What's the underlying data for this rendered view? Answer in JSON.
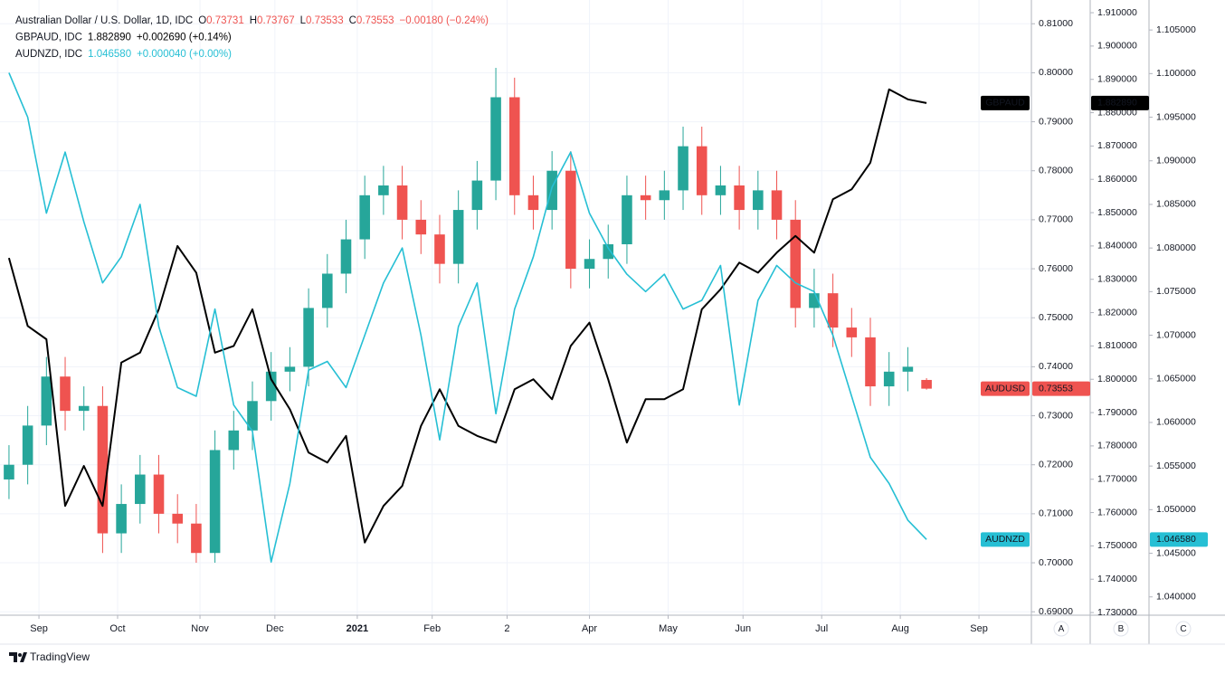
{
  "chart_data": {
    "type": "candlestick",
    "x": [
      0,
      5,
      10,
      15,
      20,
      25,
      30,
      35,
      40,
      45,
      50,
      55,
      60,
      65,
      70,
      75,
      80,
      85,
      90,
      95,
      100,
      105,
      110,
      115,
      120,
      125,
      130,
      135,
      140,
      145,
      150,
      155,
      160,
      165,
      170,
      175,
      180,
      185,
      190,
      195,
      200,
      205,
      210,
      215,
      220,
      225,
      230,
      235,
      240,
      245
    ],
    "xlim": [
      -2.4,
      273
    ],
    "xticks": [
      {
        "value": 8,
        "label": "Sep"
      },
      {
        "value": 29,
        "label": "Oct"
      },
      {
        "value": 51,
        "label": "Nov"
      },
      {
        "value": 71,
        "label": "Dec"
      },
      {
        "value": 93,
        "label": "2021"
      },
      {
        "value": 113,
        "label": "Feb"
      },
      {
        "value": 133,
        "label": "2"
      },
      {
        "value": 155,
        "label": "Apr"
      },
      {
        "value": 176,
        "label": "May"
      },
      {
        "value": 196,
        "label": "Jun"
      },
      {
        "value": 217,
        "label": "Jul"
      },
      {
        "value": 238,
        "label": "Aug"
      },
      {
        "value": 259,
        "label": "Sep"
      }
    ],
    "ylim": [
      0.6893,
      0.813
    ],
    "yticks": [
      {
        "value": 0.69,
        "label": "0.69000"
      },
      {
        "value": 0.7,
        "label": "0.70000"
      },
      {
        "value": 0.71,
        "label": "0.71000"
      },
      {
        "value": 0.72,
        "label": "0.72000"
      },
      {
        "value": 0.73,
        "label": "0.73000"
      },
      {
        "value": 0.74,
        "label": "0.74000"
      },
      {
        "value": 0.75,
        "label": "0.75000"
      },
      {
        "value": 0.76,
        "label": "0.76000"
      },
      {
        "value": 0.77,
        "label": "0.77000"
      },
      {
        "value": 0.78,
        "label": "0.78000"
      },
      {
        "value": 0.79,
        "label": "0.79000"
      },
      {
        "value": 0.8,
        "label": "0.80000"
      },
      {
        "value": 0.81,
        "label": "0.81000"
      }
    ],
    "y2lim": [
      1.7292,
      1.9111
    ],
    "y2ticks": [
      {
        "value": 1.73,
        "label": "1.730000"
      },
      {
        "value": 1.74,
        "label": "1.740000"
      },
      {
        "value": 1.75,
        "label": "1.750000"
      },
      {
        "value": 1.76,
        "label": "1.760000"
      },
      {
        "value": 1.77,
        "label": "1.770000"
      },
      {
        "value": 1.78,
        "label": "1.780000"
      },
      {
        "value": 1.79,
        "label": "1.790000"
      },
      {
        "value": 1.8,
        "label": "1.800000"
      },
      {
        "value": 1.81,
        "label": "1.810000"
      },
      {
        "value": 1.82,
        "label": "1.820000"
      },
      {
        "value": 1.83,
        "label": "1.830000"
      },
      {
        "value": 1.84,
        "label": "1.840000"
      },
      {
        "value": 1.85,
        "label": "1.850000"
      },
      {
        "value": 1.86,
        "label": "1.860000"
      },
      {
        "value": 1.87,
        "label": "1.870000"
      },
      {
        "value": 1.88,
        "label": "1.880000"
      },
      {
        "value": 1.89,
        "label": "1.890000"
      },
      {
        "value": 1.9,
        "label": "1.900000"
      },
      {
        "value": 1.91,
        "label": "1.910000"
      }
    ],
    "y3lim": [
      1.0379,
      1.1074
    ],
    "y3ticks": [
      {
        "value": 1.04,
        "label": "1.040000"
      },
      {
        "value": 1.045,
        "label": "1.045000"
      },
      {
        "value": 1.05,
        "label": "1.050000"
      },
      {
        "value": 1.055,
        "label": "1.055000"
      },
      {
        "value": 1.06,
        "label": "1.060000"
      },
      {
        "value": 1.065,
        "label": "1.065000"
      },
      {
        "value": 1.07,
        "label": "1.070000"
      },
      {
        "value": 1.075,
        "label": "1.075000"
      },
      {
        "value": 1.08,
        "label": "1.080000"
      },
      {
        "value": 1.085,
        "label": "1.085000"
      },
      {
        "value": 1.09,
        "label": "1.090000"
      },
      {
        "value": 1.095,
        "label": "1.095000"
      },
      {
        "value": 1.1,
        "label": "1.100000"
      },
      {
        "value": 1.105,
        "label": "1.105000"
      }
    ],
    "grid": true,
    "series": [
      {
        "name": "AUDUSD",
        "type": "candlestick",
        "axis": "y",
        "up_color": "#26a69a",
        "down_color": "#ef5350",
        "badge_color": "#ef5350",
        "price_label": "0.73553",
        "open": [
          0.717,
          0.72,
          0.728,
          0.738,
          0.731,
          0.732,
          0.706,
          0.712,
          0.718,
          0.71,
          0.708,
          0.702,
          0.723,
          0.727,
          0.733,
          0.739,
          0.74,
          0.752,
          0.759,
          0.766,
          0.775,
          0.777,
          0.77,
          0.767,
          0.761,
          0.772,
          0.778,
          0.795,
          0.775,
          0.772,
          0.78,
          0.76,
          0.762,
          0.765,
          0.775,
          0.774,
          0.776,
          0.785,
          0.775,
          0.777,
          0.772,
          0.776,
          0.77,
          0.752,
          0.755,
          0.748,
          0.746,
          0.736,
          0.739,
          0.73731
        ],
        "high": [
          0.724,
          0.732,
          0.742,
          0.742,
          0.736,
          0.736,
          0.716,
          0.722,
          0.722,
          0.714,
          0.712,
          0.727,
          0.731,
          0.737,
          0.743,
          0.744,
          0.756,
          0.763,
          0.77,
          0.779,
          0.781,
          0.781,
          0.774,
          0.771,
          0.776,
          0.782,
          0.801,
          0.799,
          0.779,
          0.784,
          0.784,
          0.766,
          0.769,
          0.779,
          0.779,
          0.78,
          0.789,
          0.789,
          0.781,
          0.781,
          0.78,
          0.78,
          0.774,
          0.76,
          0.759,
          0.752,
          0.75,
          0.743,
          0.744,
          0.73767
        ],
        "low": [
          0.713,
          0.716,
          0.724,
          0.727,
          0.727,
          0.702,
          0.702,
          0.708,
          0.706,
          0.704,
          0.7,
          0.7,
          0.719,
          0.723,
          0.729,
          0.735,
          0.736,
          0.748,
          0.755,
          0.762,
          0.771,
          0.766,
          0.763,
          0.757,
          0.757,
          0.768,
          0.774,
          0.771,
          0.768,
          0.768,
          0.756,
          0.756,
          0.758,
          0.761,
          0.77,
          0.77,
          0.772,
          0.771,
          0.771,
          0.768,
          0.768,
          0.766,
          0.748,
          0.748,
          0.744,
          0.742,
          0.732,
          0.732,
          0.735,
          0.73533
        ],
        "close": [
          0.72,
          0.728,
          0.738,
          0.731,
          0.732,
          0.706,
          0.712,
          0.718,
          0.71,
          0.708,
          0.702,
          0.723,
          0.727,
          0.733,
          0.739,
          0.74,
          0.752,
          0.759,
          0.766,
          0.775,
          0.777,
          0.77,
          0.767,
          0.761,
          0.772,
          0.778,
          0.795,
          0.775,
          0.772,
          0.78,
          0.76,
          0.762,
          0.765,
          0.775,
          0.774,
          0.776,
          0.785,
          0.775,
          0.777,
          0.772,
          0.776,
          0.77,
          0.752,
          0.755,
          0.748,
          0.746,
          0.736,
          0.739,
          0.74,
          0.73553
        ]
      },
      {
        "name": "GBPAUD",
        "type": "line",
        "axis": "y2",
        "color": "#000000",
        "price_label": "1.882890",
        "values": [
          1.8364,
          1.816,
          1.812,
          1.762,
          1.774,
          1.762,
          1.805,
          1.808,
          1.821,
          1.84,
          1.832,
          1.808,
          1.81,
          1.821,
          1.8,
          1.791,
          1.778,
          1.775,
          1.783,
          1.751,
          1.762,
          1.768,
          1.786,
          1.797,
          1.786,
          1.783,
          1.781,
          1.797,
          1.8,
          1.794,
          1.81,
          1.817,
          1.8,
          1.781,
          1.794,
          1.794,
          1.797,
          1.821,
          1.827,
          1.835,
          1.832,
          1.838,
          1.843,
          1.838,
          1.854,
          1.857,
          1.865,
          1.887,
          1.884,
          1.88289
        ]
      },
      {
        "name": "AUDNZD",
        "type": "line",
        "axis": "y3",
        "color": "#26bfd4",
        "price_label": "1.046580",
        "values": [
          1.1001,
          1.095,
          1.084,
          1.091,
          1.083,
          1.076,
          1.079,
          1.085,
          1.071,
          1.064,
          1.063,
          1.073,
          1.062,
          1.059,
          1.044,
          1.053,
          1.066,
          1.067,
          1.064,
          1.07,
          1.076,
          1.08,
          1.07,
          1.058,
          1.071,
          1.076,
          1.061,
          1.073,
          1.079,
          1.087,
          1.091,
          1.084,
          1.08,
          1.077,
          1.075,
          1.077,
          1.073,
          1.074,
          1.078,
          1.062,
          1.074,
          1.078,
          1.076,
          1.075,
          1.07,
          1.063,
          1.056,
          1.053,
          1.0488,
          1.04658
        ]
      }
    ],
    "legend": [
      [
        {
          "text": "Australian Dollar / U.S. Dollar, 1D, IDC",
          "color": "#131722"
        },
        {
          "text": "O",
          "color": "#131722"
        },
        {
          "text": "0.73731",
          "color": "#ef5350"
        },
        {
          "text": "H",
          "color": "#131722"
        },
        {
          "text": "0.73767",
          "color": "#ef5350"
        },
        {
          "text": "L",
          "color": "#131722"
        },
        {
          "text": "0.73533",
          "color": "#ef5350"
        },
        {
          "text": "C",
          "color": "#131722"
        },
        {
          "text": "0.73553",
          "color": "#ef5350"
        },
        {
          "text": "−0.00180 (−0.24%)",
          "color": "#ef5350"
        }
      ],
      [
        {
          "text": "GBPAUD, IDC",
          "color": "#131722"
        },
        {
          "text": "1.882890",
          "color": "#000000"
        },
        {
          "text": "+0.002690 (+0.14%)",
          "color": "#000000"
        }
      ],
      [
        {
          "text": "AUDNZD, IDC",
          "color": "#131722"
        },
        {
          "text": "1.046580",
          "color": "#26bfd4"
        },
        {
          "text": "+0.000040 (+0.00%)",
          "color": "#26bfd4"
        }
      ]
    ],
    "scale_buttons": [
      "A",
      "B",
      "C"
    ]
  },
  "brand": "TradingView"
}
